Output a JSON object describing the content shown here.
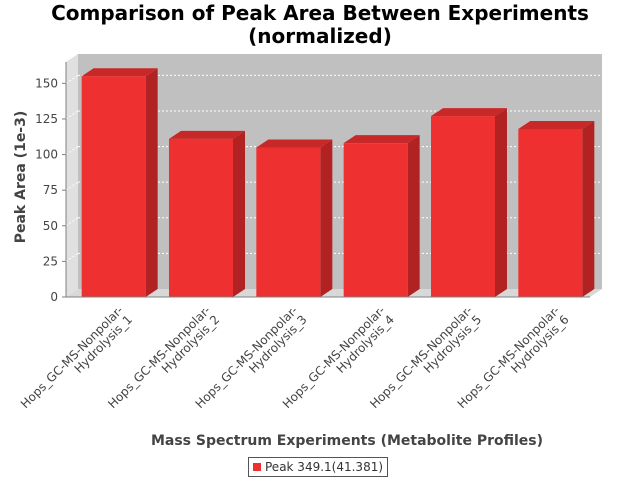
{
  "chart_data": {
    "type": "bar",
    "title_line1": "Comparison of Peak Area Between Experiments",
    "title_line2": "(normalized)",
    "xlabel": "Mass Spectrum Experiments (Metabolite Profiles)",
    "ylabel": "Peak Area (1e-3)",
    "categories": [
      [
        "Hops_GC-MS-Nonpolar-",
        "Hydrolysis_1"
      ],
      [
        "Hops_GC-MS-Nonpolar-",
        "Hydrolysis_2"
      ],
      [
        "Hops_GC-MS-Nonpolar-",
        "Hydrolysis_3"
      ],
      [
        "Hops_GC-MS-Nonpolar-",
        "Hydrolysis_4"
      ],
      [
        "Hops_GC-MS-Nonpolar-",
        "Hydrolysis_5"
      ],
      [
        "Hops_GC-MS-Nonpolar-",
        "Hydrolysis_6"
      ]
    ],
    "series": [
      {
        "name": "Peak 349.1(41.381)",
        "values": [
          155,
          111,
          105,
          108,
          127,
          118
        ]
      }
    ],
    "ylim": [
      0,
      165
    ],
    "yticks": [
      0,
      25,
      50,
      75,
      100,
      125,
      150
    ],
    "grid": true,
    "style": "3d",
    "legend_position": "bottom",
    "colors": {
      "bar_front": "#ee3030",
      "bar_side": "#b22222",
      "bar_top": "#c82828",
      "plot_back": "#c0c0c0",
      "plot_floor": "#d8d8d8",
      "plot_left_wall": "#e0e0e0"
    }
  }
}
